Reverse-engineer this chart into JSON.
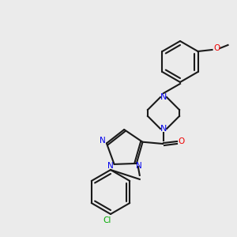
{
  "bg": "#ebebeb",
  "bond": "#1a1a1a",
  "N": "#0000ee",
  "O": "#ee0000",
  "Cl": "#00aa00",
  "lw": 1.5,
  "lw2": 1.5
}
